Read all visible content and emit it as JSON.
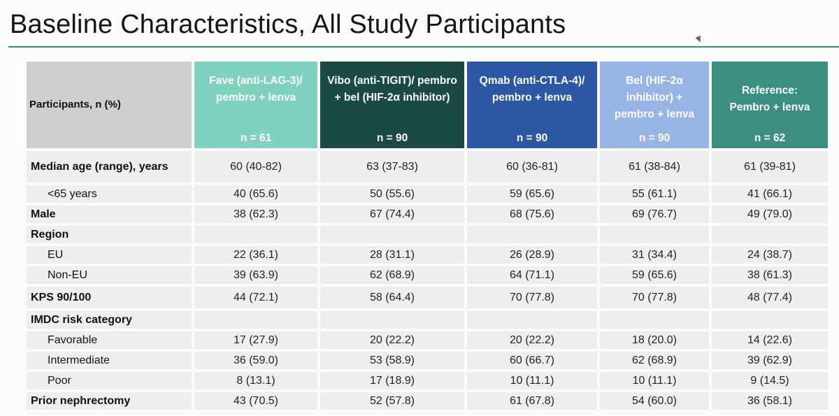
{
  "title": "Baseline Characteristics, All Study Participants",
  "table": {
    "corner": "Participants, n (%)",
    "columns": [
      {
        "label": "Fave (anti-LAG-3)/ pembro + lenva",
        "n": "n = 61",
        "color": "#7fd2be"
      },
      {
        "label": "Vibo (anti-TIGIT)/ pembro + bel (HIF-2α inhibitor)",
        "n": "n = 90",
        "color": "#1b4a44"
      },
      {
        "label": "Qmab (anti-CTLA-4)/ pembro + lenva",
        "n": "n = 90",
        "color": "#2b57a4"
      },
      {
        "label": "Bel (HIF-2α inhibitor) + pembro + lenva",
        "n": "n = 90",
        "color": "#96b5e4"
      },
      {
        "label": "Reference: Pembro + lenva",
        "n": "n = 62",
        "color": "#3b8f80"
      }
    ],
    "rows": [
      {
        "label": "Median age (range), years",
        "values": [
          "60 (40-82)",
          "63 (37-83)",
          "60 (36-81)",
          "61 (38-84)",
          "61 (39-81)"
        ]
      },
      {
        "label": "<65 years",
        "values": [
          "40 (65.6)",
          "50 (55.6)",
          "59 (65.6)",
          "55 (61.1)",
          "41 (66.1)"
        ]
      },
      {
        "label": "Male",
        "values": [
          "38 (62.3)",
          "67 (74.4)",
          "68 (75.6)",
          "69 (76.7)",
          "49 (79.0)"
        ]
      },
      {
        "label": "Region",
        "values": [
          "",
          "",
          "",
          "",
          ""
        ]
      },
      {
        "label": "EU",
        "values": [
          "22 (36.1)",
          "28 (31.1)",
          "26 (28.9)",
          "31 (34.4)",
          "24 (38.7)"
        ]
      },
      {
        "label": "Non-EU",
        "values": [
          "39 (63.9)",
          "62 (68.9)",
          "64 (71.1)",
          "59 (65.6)",
          "38 (61.3)"
        ]
      },
      {
        "label": "KPS 90/100",
        "values": [
          "44 (72.1)",
          "58 (64.4)",
          "70 (77.8)",
          "70 (77.8)",
          "48 (77.4)"
        ]
      },
      {
        "label": "IMDC risk category",
        "values": [
          "",
          "",
          "",
          "",
          ""
        ]
      },
      {
        "label": "Favorable",
        "values": [
          "17 (27.9)",
          "20 (22.2)",
          "20 (22.2)",
          "18 (20.0)",
          "14 (22.6)"
        ]
      },
      {
        "label": "Intermediate",
        "values": [
          "36 (59.0)",
          "53 (58.9)",
          "60 (66.7)",
          "62 (68.9)",
          "39 (62.9)"
        ]
      },
      {
        "label": "Poor",
        "values": [
          "8 (13.1)",
          "17 (18.9)",
          "10 (11.1)",
          "10 (11.1)",
          "9 (14.5)"
        ]
      },
      {
        "label": "Prior nephrectomy",
        "values": [
          "43 (70.5)",
          "52 (57.8)",
          "61 (67.8)",
          "54 (60.0)",
          "36 (58.1)"
        ]
      }
    ]
  }
}
